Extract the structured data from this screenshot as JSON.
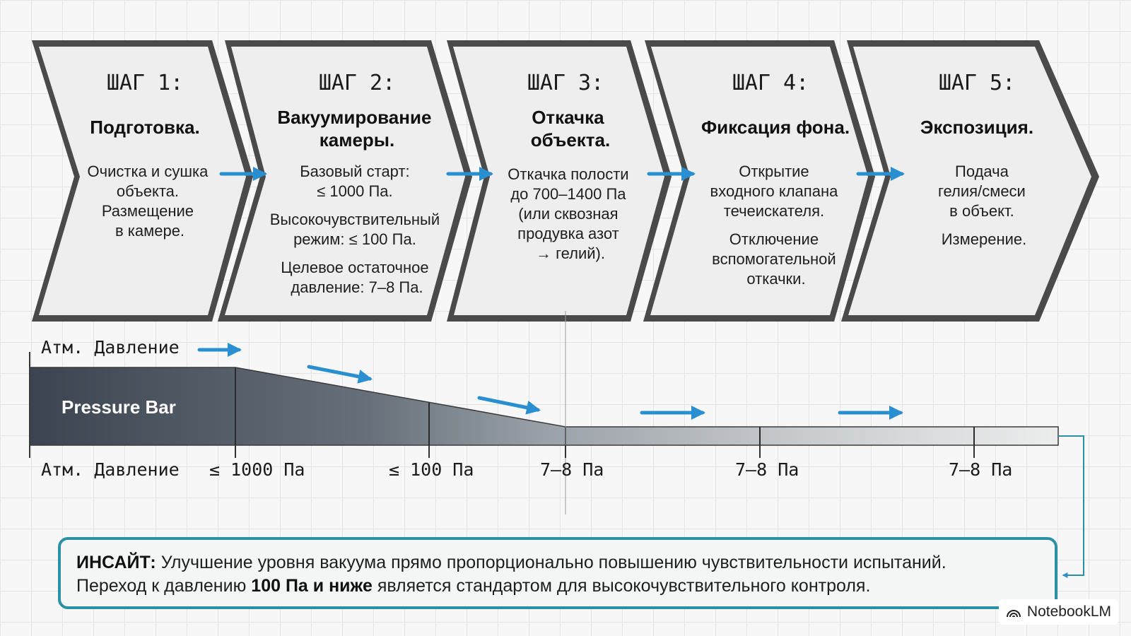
{
  "steps": [
    {
      "title": "ШАГ 1:",
      "name": [
        "Подготовка."
      ],
      "text": [
        "Очистка и сушка",
        "объекта.",
        "Размещение",
        "в камере."
      ]
    },
    {
      "title": "ШАГ 2:",
      "name": [
        "Вакуумирование",
        "камеры."
      ],
      "text": [
        "Базовый старт:",
        "≤ 1000 Па.",
        "Высокочувствительный",
        "режим: ≤ 100 Па.",
        "Целевое остаточное",
        "давление: 7–8 Па."
      ]
    },
    {
      "title": "ШАГ 3:",
      "name": [
        "Откачка",
        "объекта."
      ],
      "text": [
        "Откачка полости",
        "до 700–1400 Па",
        "(или сквозная",
        "продувка азот",
        "→ гелий)."
      ]
    },
    {
      "title": "ШАГ 4:",
      "name": [
        "Фиксация фона."
      ],
      "text": [
        "Открытие",
        "входного клапана",
        "течеискателя.",
        "Отключение",
        "вспомогательной",
        "откачки."
      ]
    },
    {
      "title": "ШАГ 5:",
      "name": [
        "Экспозиция."
      ],
      "text": [
        "Подача",
        "гелия/смеси",
        "в объект.",
        "Измерение."
      ]
    }
  ],
  "pressure": {
    "top_label": "Атм. Давление",
    "bar_label": "Pressure Bar",
    "levels": [
      "Атм. Давление",
      "≤ 1000 Па",
      "≤ 100 Па",
      "7–8 Па",
      "7–8 Па",
      "7–8 Па"
    ]
  },
  "insight": {
    "label": "ИНСАЙТ:",
    "line1": "Улучшение уровня вакуума прямо пропорционально повышению чувствительности испытаний.",
    "line2_prefix": "Переход к давлению",
    "line2_bold": "100 Па и ниже",
    "line2_suffix": "является стандартом для высокочувствительного контроля."
  },
  "brand": "NotebookLM",
  "colors": {
    "accent_arrow": "#2a8fd0",
    "insight_border": "#2b8fa6",
    "chevron_fill": "#eeeeee",
    "chevron_stroke": "#4a4a4a"
  }
}
